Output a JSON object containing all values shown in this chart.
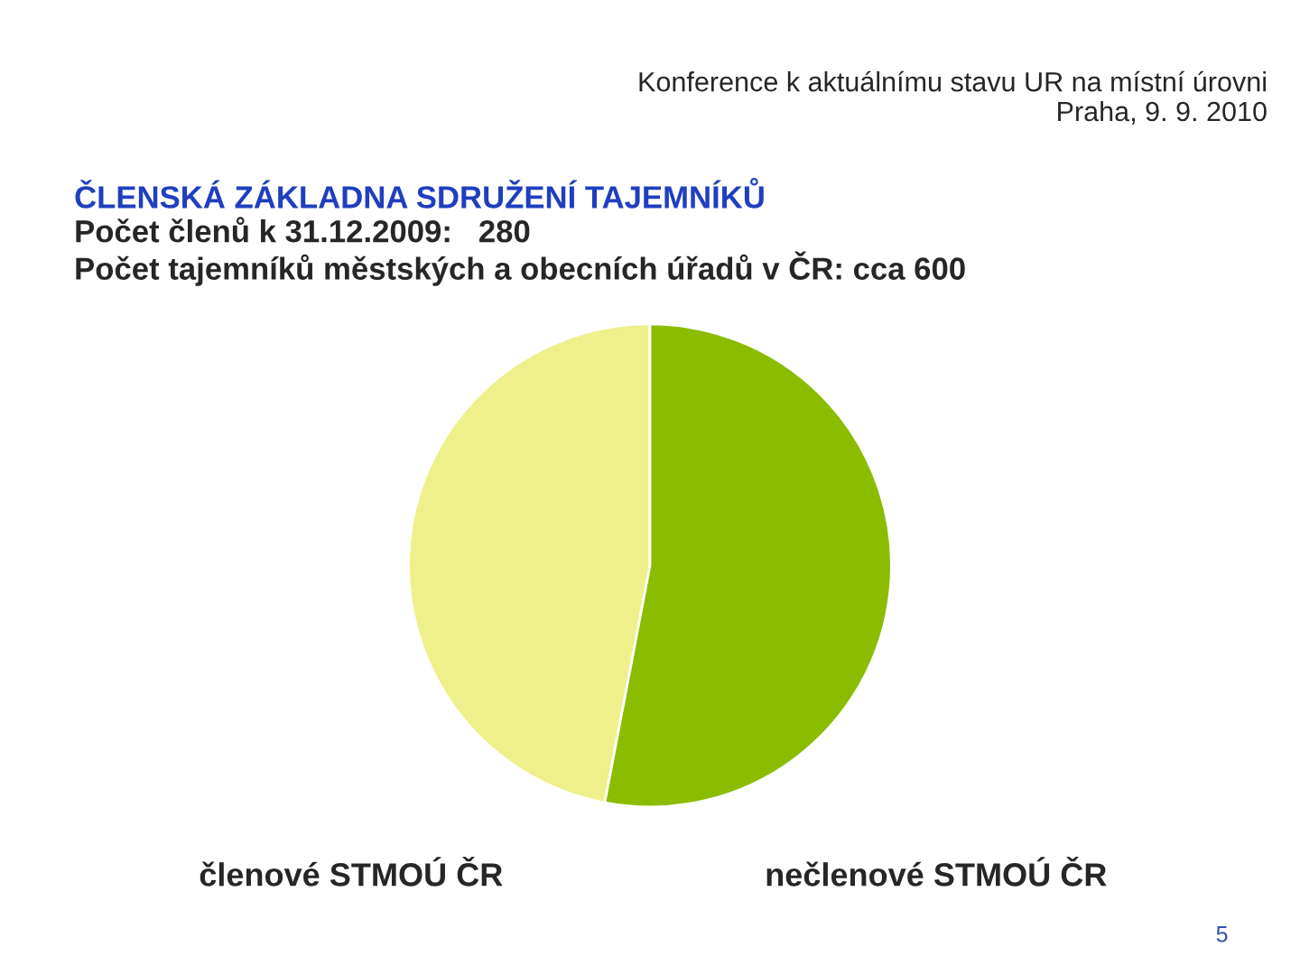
{
  "chart_data": {
    "type": "pie",
    "title": "ČLENSKÁ ZÁKLADNA SDRUŽENÍ TAJEMNÍKŮ",
    "subtitle": "Počet členů k 31.12.2009:   280\nPočet tajemníků městských a obecních úřadů v ČR: cca 600",
    "categories": [
      "členové STMOÚ ČR",
      "nečlenové STMOÚ ČR"
    ],
    "values": [
      47,
      53
    ],
    "colors": [
      "#eef08c",
      "#8cbc00"
    ],
    "annotations": [
      "Konference k aktuálnímu stavu UR na místní úrovni\nPraha, 9. 9. 2010",
      "5"
    ]
  }
}
